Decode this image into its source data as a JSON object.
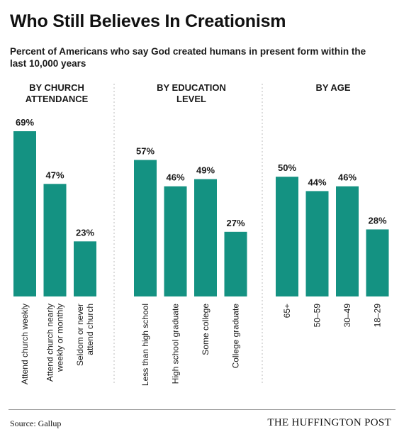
{
  "colors": {
    "bar": "#149282",
    "text": "#1a1a1a",
    "divider": "#bbbbbb"
  },
  "footer": {
    "source": "Source: Gallup",
    "brand": "THE HUFFINGTON POST"
  },
  "chart_data": {
    "type": "bar",
    "title": "Who Still Believes In Creationism",
    "subtitle": "Percent of Americans who say God created humans in present form within the last 10,000 years",
    "unit": "%",
    "ylim": [
      0,
      69
    ],
    "grid": false,
    "panels": [
      {
        "title": [
          "BY CHURCH",
          "ATTENDANCE"
        ],
        "categories": [
          [
            "Attend church weekly"
          ],
          [
            "Attend church nearly",
            "weekly or monthly"
          ],
          [
            "Seldom or never",
            "attend church"
          ]
        ],
        "values": [
          69,
          47,
          23
        ]
      },
      {
        "title": [
          "BY EDUCATION",
          "LEVEL"
        ],
        "categories": [
          [
            "Less than high school"
          ],
          [
            "High school graduate"
          ],
          [
            "Some college"
          ],
          [
            "College graduate"
          ]
        ],
        "values": [
          57,
          46,
          49,
          27
        ]
      },
      {
        "title": [
          "BY AGE"
        ],
        "categories": [
          [
            "65+"
          ],
          [
            "50–59"
          ],
          [
            "30–49"
          ],
          [
            "18–29"
          ]
        ],
        "values": [
          50,
          44,
          46,
          28
        ]
      }
    ]
  }
}
